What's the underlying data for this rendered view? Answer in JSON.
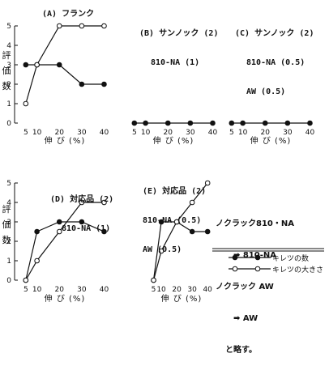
{
  "chart_data": [
    {
      "id": "A",
      "type": "line",
      "title": "(A) フランク",
      "xlabel": "伸 び (%)",
      "ylabel": "評 価 数",
      "x": [
        5,
        10,
        20,
        30,
        40
      ],
      "xlim": [
        0,
        42
      ],
      "ylim": [
        0,
        5
      ],
      "yticks": [
        0,
        1,
        2,
        3,
        4,
        5
      ],
      "series": [
        {
          "name": "キレツの数",
          "marker": "filled",
          "values": [
            3,
            3,
            3,
            2,
            2
          ]
        },
        {
          "name": "キレツの大きさ",
          "marker": "open",
          "values": [
            1,
            3,
            5,
            5,
            5
          ]
        }
      ]
    },
    {
      "id": "B",
      "type": "line",
      "title_lines": [
        "(B) サンノック (2)",
        "810-NA (1)"
      ],
      "xlabel": "伸 び (%)",
      "x": [
        5,
        10,
        20,
        30,
        40
      ],
      "xlim": [
        0,
        42
      ],
      "ylim": [
        0,
        5
      ],
      "series": [
        {
          "name": "キレツの数",
          "marker": "filled",
          "values": [
            0,
            0,
            0,
            0,
            0
          ]
        }
      ]
    },
    {
      "id": "C",
      "type": "line",
      "title_lines": [
        "(C) サンノック (2)",
        "810-NA (0.5)",
        "AW (0.5)"
      ],
      "xlabel": "伸 び (%)",
      "x": [
        5,
        10,
        20,
        30,
        40
      ],
      "xlim": [
        0,
        42
      ],
      "ylim": [
        0,
        5
      ],
      "series": [
        {
          "name": "キレツの数",
          "marker": "filled",
          "values": [
            0,
            0,
            0,
            0,
            0
          ]
        }
      ]
    },
    {
      "id": "D",
      "type": "line",
      "title_lines": [
        "(D) 対応品 (2)",
        "810-NA (1)"
      ],
      "xlabel": "伸 び (%)",
      "ylabel": "評 価 数",
      "x": [
        5,
        10,
        20,
        30,
        40
      ],
      "xlim": [
        0,
        42
      ],
      "ylim": [
        0,
        5
      ],
      "yticks": [
        0,
        1,
        2,
        3,
        4,
        5
      ],
      "series": [
        {
          "name": "キレツの数",
          "marker": "filled",
          "values": [
            0,
            2.5,
            3,
            3,
            2.5
          ]
        },
        {
          "name": "キレツの大きさ",
          "marker": "open",
          "values": [
            0,
            1,
            2.5,
            4,
            4
          ]
        }
      ]
    },
    {
      "id": "E",
      "type": "line",
      "title_lines": [
        "(E) 対応品 (2)",
        "810-NA (0.5)",
        "AW (0.5)"
      ],
      "xlabel": "伸 び (%)",
      "x": [
        5,
        10,
        20,
        30,
        40
      ],
      "xlim": [
        0,
        42
      ],
      "ylim": [
        0,
        5
      ],
      "series": [
        {
          "name": "キレツの数",
          "marker": "filled",
          "values": [
            0,
            3,
            3,
            2.5,
            2.5
          ]
        },
        {
          "name": "キレツの大きさ",
          "marker": "open",
          "values": [
            0,
            1.5,
            3,
            4,
            5
          ]
        }
      ]
    }
  ],
  "notes": [
    "ノクラック810・NA",
    "➡ 810-NA",
    "ノクラック AW",
    "➡ AW",
    "と略す。"
  ],
  "legend": {
    "filled_label": "キレツの数",
    "open_label": "キレツの大きさ"
  }
}
